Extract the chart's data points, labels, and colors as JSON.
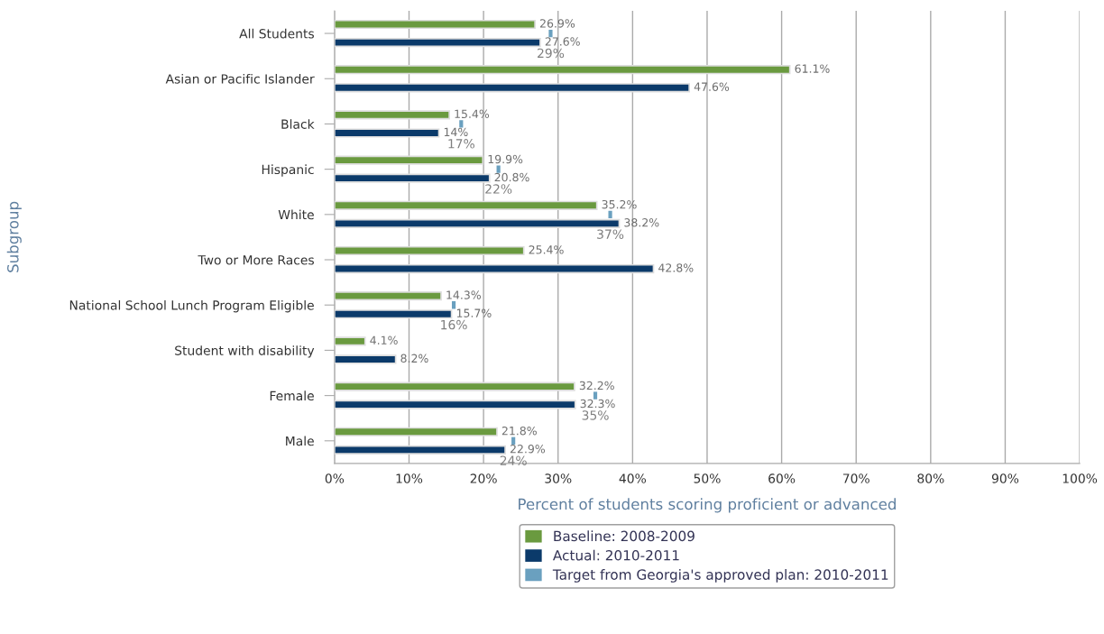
{
  "chart_data": {
    "type": "bar",
    "orientation": "horizontal",
    "categories": [
      "All Students",
      "Asian or Pacific Islander",
      "Black",
      "Hispanic",
      "White",
      "Two or More Races",
      "National School Lunch Program Eligible",
      "Student with disability",
      "Female",
      "Male"
    ],
    "series": [
      {
        "name": "Baseline: 2008-2009",
        "color": "#6a9a3f",
        "values": [
          26.9,
          61.1,
          15.4,
          19.9,
          35.2,
          25.4,
          14.3,
          4.1,
          32.2,
          21.8
        ],
        "value_labels": [
          "26.9%",
          "61.1%",
          "15.4%",
          "19.9%",
          "35.2%",
          "25.4%",
          "14.3%",
          "4.1%",
          "32.2%",
          "21.8%"
        ]
      },
      {
        "name": "Actual: 2010-2011",
        "color": "#0b3a6a",
        "values": [
          27.6,
          47.6,
          14,
          20.8,
          38.2,
          42.8,
          15.7,
          8.2,
          32.3,
          22.9
        ],
        "value_labels": [
          "27.6%",
          "47.6%",
          "14%",
          "20.8%",
          "38.2%",
          "42.8%",
          "15.7%",
          "8.2%",
          "32.3%",
          "22.9%"
        ]
      },
      {
        "name": "Target from Georgia's approved plan: 2010-2011",
        "type": "scatter",
        "color": "#6aa0bf",
        "values": [
          29,
          null,
          17,
          22,
          37,
          null,
          16,
          null,
          35,
          24
        ],
        "value_labels": [
          "29%",
          null,
          "17%",
          "22%",
          "37%",
          null,
          "16%",
          null,
          "35%",
          "24%"
        ]
      }
    ],
    "xlim": [
      0,
      100
    ],
    "xticks": [
      {
        "value": 0,
        "label": "0%"
      },
      {
        "value": 10,
        "label": "10%"
      },
      {
        "value": 20,
        "label": "20%"
      },
      {
        "value": 30,
        "label": "30%"
      },
      {
        "value": 40,
        "label": "40%"
      },
      {
        "value": 50,
        "label": "50%"
      },
      {
        "value": 60,
        "label": "60%"
      },
      {
        "value": 70,
        "label": "70%"
      },
      {
        "value": 80,
        "label": "80%"
      },
      {
        "value": 90,
        "label": "90%"
      },
      {
        "value": 100,
        "label": "100%"
      }
    ],
    "xlabel": "Percent of students scoring proficient or advanced",
    "ylabel": "Subgroup",
    "grid": "x",
    "legend": "bottom"
  }
}
